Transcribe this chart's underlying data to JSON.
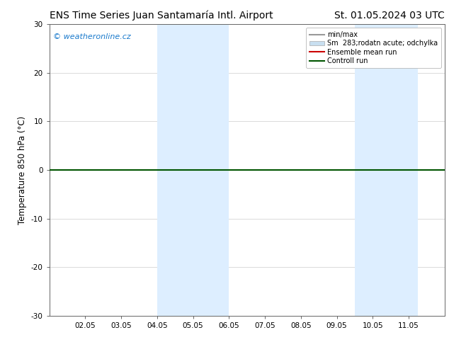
{
  "title_left": "ENS Time Series Juan Santamaría Intl. Airport",
  "title_right": "St. 01.05.2024 03 UTC",
  "ylabel": "Temperature 850 hPa (°C)",
  "watermark": "© weatheronline.cz",
  "watermark_color": "#1a7acc",
  "xlim": [
    1.0,
    12.0
  ],
  "xtick_positions": [
    2,
    3,
    4,
    5,
    6,
    7,
    8,
    9,
    10,
    11
  ],
  "xtick_labels": [
    "02.05",
    "03.05",
    "04.05",
    "05.05",
    "06.05",
    "07.05",
    "08.05",
    "09.05",
    "10.05",
    "11.05"
  ],
  "ylim": [
    -30,
    30
  ],
  "yticks": [
    -30,
    -20,
    -10,
    0,
    10,
    20,
    30
  ],
  "background_color": "#ffffff",
  "plot_bg_color": "#ffffff",
  "shaded_bands": [
    {
      "x_start": 4.0,
      "x_end": 6.0,
      "color": "#ddeeff"
    },
    {
      "x_start": 9.5,
      "x_end": 11.25,
      "color": "#ddeeff"
    }
  ],
  "control_run_y": 0.0,
  "control_run_color": "#005500",
  "ensemble_mean_color": "#cc0000",
  "legend_entries": [
    {
      "label": "min/max",
      "color": "#999999",
      "lw": 1.5
    },
    {
      "label": "Sm  283;rodatn acute; odchylka",
      "color": "#c8dff0",
      "lw": 8
    },
    {
      "label": "Ensemble mean run",
      "color": "#cc0000",
      "lw": 1.5
    },
    {
      "label": "Controll run",
      "color": "#005500",
      "lw": 1.5
    }
  ],
  "grid_color": "#cccccc",
  "grid_lw": 0.5,
  "title_fontsize": 10,
  "tick_fontsize": 7.5,
  "ylabel_fontsize": 8.5,
  "watermark_fontsize": 8,
  "legend_fontsize": 7,
  "fig_width": 6.34,
  "fig_height": 4.9,
  "dpi": 100
}
